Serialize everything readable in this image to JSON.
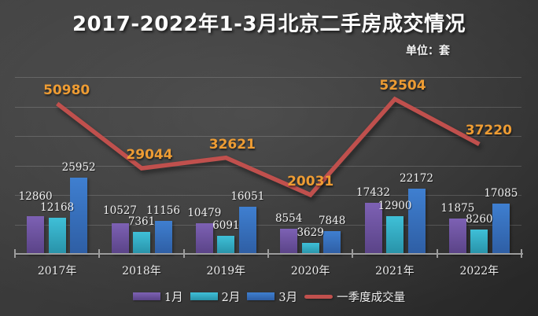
{
  "chart_data": {
    "type": "combo_bar_line",
    "title": "2017-2022年1-3月北京二手房成交情况",
    "unit_label": "单位：套",
    "categories": [
      "2017年",
      "2018年",
      "2019年",
      "2020年",
      "2021年",
      "2022年"
    ],
    "bar_series": [
      {
        "name": "1月",
        "values": [
          12860,
          10527,
          10479,
          8554,
          17432,
          11875
        ],
        "color_top": "#7d61b4",
        "color_bottom": "#5a4387"
      },
      {
        "name": "2月",
        "values": [
          12168,
          7361,
          6091,
          3629,
          12900,
          8260
        ],
        "color_top": "#3fc0d8",
        "color_bottom": "#2892a8"
      },
      {
        "name": "3月",
        "values": [
          25952,
          11156,
          16051,
          7848,
          22172,
          17085
        ],
        "color_top": "#3f7fd0",
        "color_bottom": "#2e5ea4"
      }
    ],
    "line_series": {
      "name": "一季度成交量",
      "values": [
        50980,
        29044,
        32621,
        20031,
        52504,
        37220
      ],
      "color": "#c0504d",
      "label_color": "#ee9c33",
      "label_dx": [
        12,
        10,
        8,
        0,
        10,
        12
      ]
    },
    "ylim": [
      0,
      60000
    ],
    "grid_step": 10000,
    "grid": true,
    "legend_position": "bottom"
  }
}
